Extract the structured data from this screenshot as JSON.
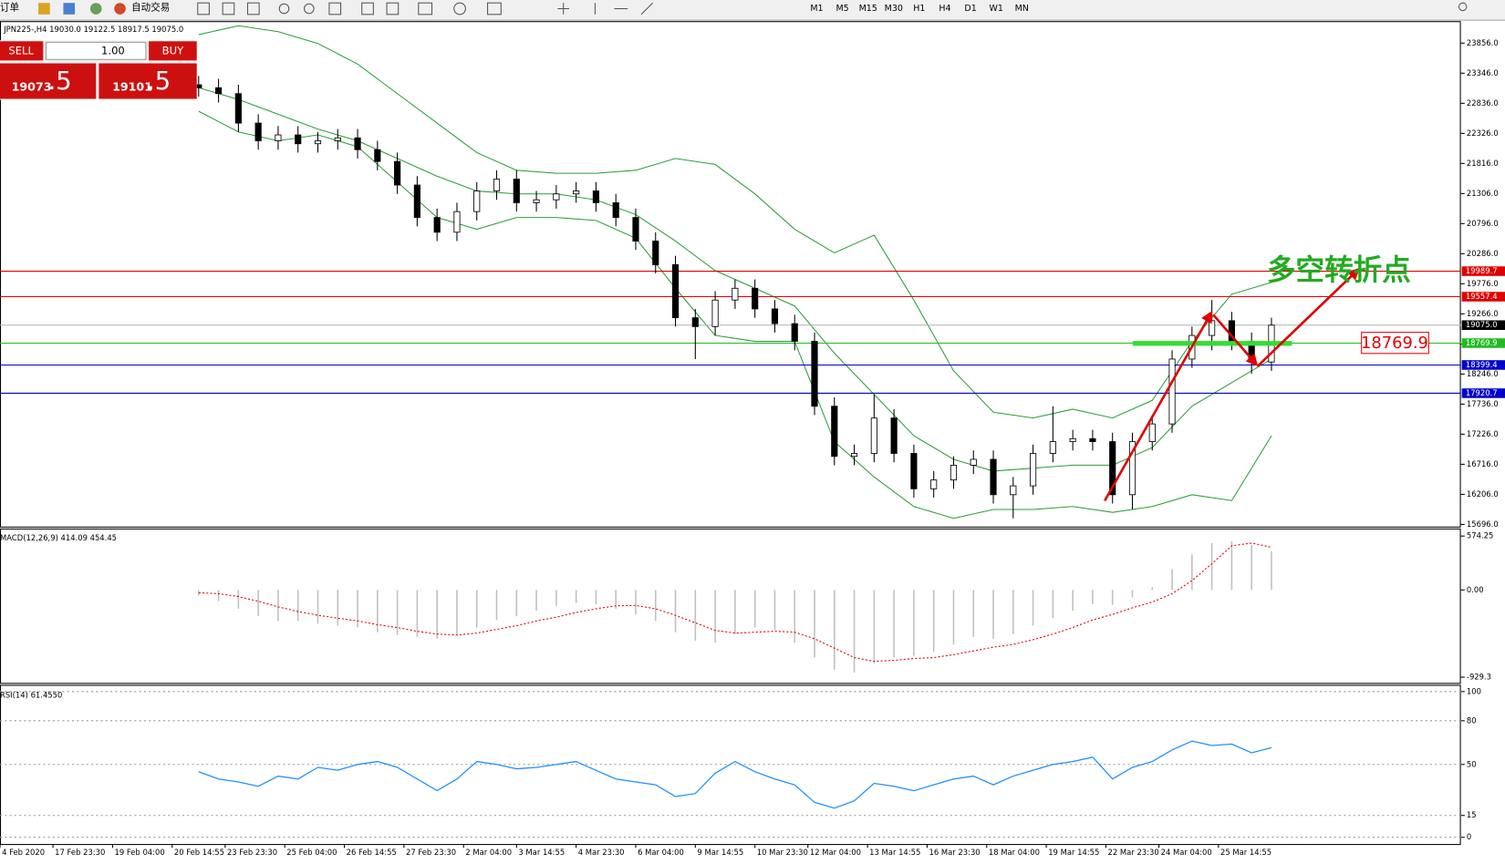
{
  "toolbar": {
    "order": "新订单",
    "auto_trade": "自动交易",
    "timeframes": [
      "M1",
      "M5",
      "M15",
      "M30",
      "H1",
      "H4",
      "D1",
      "W1",
      "MN"
    ]
  },
  "trade_panel": {
    "sell": "SELL",
    "buy": "BUY",
    "lots": "1.00",
    "sell_price": "19073",
    "sell_fraction": ".5",
    "buy_price": "19101",
    "buy_fraction": ".5"
  },
  "chart_data": [
    {
      "type": "candlestick",
      "title": "JPN225-,H4  19030.0 19122.5 18917.5 19075.0",
      "annotation": "多空转折点",
      "x": [
        30,
        33,
        36,
        39,
        42,
        45,
        48,
        51,
        54,
        57,
        60,
        63,
        66,
        69,
        72,
        75,
        78,
        81,
        84,
        87,
        90,
        93,
        96,
        99,
        102,
        105,
        108,
        111,
        114,
        117,
        120,
        123,
        126,
        129,
        132,
        135,
        138,
        141,
        144,
        147,
        150,
        153,
        156,
        159,
        162,
        165,
        168,
        171,
        174,
        177,
        180,
        183,
        186,
        189,
        192
      ],
      "open": [
        23150,
        23100,
        23000,
        22500,
        22200,
        22300,
        22150,
        22200,
        22250,
        22050,
        21850,
        21450,
        20900,
        20650,
        21000,
        21350,
        21550,
        21150,
        21200,
        21300,
        21350,
        21150,
        20900,
        20500,
        20100,
        19200,
        19050,
        19500,
        19700,
        19350,
        19100,
        18800,
        17700,
        16850,
        16900,
        17500,
        16900,
        16300,
        16450,
        16700,
        16800,
        16200,
        16350,
        16900,
        17100,
        17150,
        17100,
        16200,
        17100,
        17400,
        18500,
        18900,
        19150,
        18800,
        18450
      ],
      "high": [
        23300,
        23250,
        23150,
        22650,
        22450,
        22450,
        22350,
        22400,
        22400,
        22200,
        22000,
        21600,
        21050,
        21150,
        21500,
        21700,
        21700,
        21350,
        21450,
        21500,
        21500,
        21300,
        21050,
        20650,
        20250,
        19350,
        19650,
        19850,
        19850,
        19500,
        19250,
        18950,
        17850,
        17050,
        17900,
        17650,
        17050,
        16600,
        16850,
        16950,
        16950,
        16500,
        17050,
        17700,
        17300,
        17300,
        17250,
        17250,
        17550,
        18650,
        19050,
        19500,
        19300,
        18950,
        19200
      ],
      "low": [
        22950,
        22850,
        22350,
        22050,
        22050,
        22000,
        22000,
        22050,
        21900,
        21700,
        21300,
        20750,
        20500,
        20500,
        20850,
        21200,
        21000,
        21000,
        21050,
        21150,
        21000,
        20750,
        20350,
        19950,
        19050,
        18500,
        18900,
        19350,
        19200,
        18950,
        18650,
        17550,
        16700,
        16700,
        16750,
        16750,
        16150,
        16150,
        16300,
        16550,
        16050,
        15800,
        16200,
        16750,
        16950,
        16950,
        16050,
        15950,
        16950,
        17250,
        18350,
        18650,
        18650,
        18250,
        18300
      ],
      "close": [
        23100,
        23000,
        22500,
        22200,
        22300,
        22150,
        22200,
        22250,
        22050,
        21850,
        21450,
        20900,
        20650,
        21000,
        21350,
        21550,
        21150,
        21200,
        21300,
        21350,
        21150,
        20900,
        20500,
        20100,
        19200,
        19050,
        19500,
        19700,
        19350,
        19100,
        18800,
        17700,
        16850,
        16900,
        17500,
        16900,
        16300,
        16450,
        16700,
        16800,
        16200,
        16350,
        16900,
        17100,
        17150,
        17100,
        16200,
        17100,
        17400,
        18500,
        18900,
        19150,
        18800,
        18450,
        19075
      ],
      "band_x": [
        30,
        36,
        42,
        48,
        54,
        60,
        66,
        72,
        78,
        84,
        90,
        96,
        102,
        108,
        114,
        120,
        126,
        132,
        138,
        144,
        150,
        156,
        162,
        168,
        174,
        180,
        186,
        192
      ],
      "bands": {
        "color": "#2e9e3a",
        "upper": [
          24000,
          24150,
          24050,
          23850,
          23500,
          23000,
          22500,
          22000,
          21700,
          21650,
          21650,
          21700,
          21900,
          21800,
          21300,
          20700,
          20300,
          20600,
          19500,
          18300,
          17600,
          17500,
          17650,
          17500,
          17800,
          18800,
          19600,
          19800
        ],
        "middle": [
          23100,
          22900,
          22650,
          22400,
          22200,
          21900,
          21600,
          21350,
          21300,
          21300,
          21200,
          20950,
          20500,
          20000,
          19700,
          19400,
          18600,
          17900,
          17200,
          16800,
          16600,
          16650,
          16700,
          16700,
          17000,
          17700,
          18100,
          18500
        ],
        "lower": [
          22700,
          22350,
          22200,
          22300,
          22100,
          21500,
          20900,
          20700,
          20900,
          20900,
          20850,
          20550,
          19700,
          18900,
          18800,
          18800,
          17100,
          16500,
          16000,
          15800,
          15950,
          15950,
          16000,
          15900,
          16000,
          16200,
          16100,
          17200
        ]
      },
      "levels": [
        {
          "value": 19989.7,
          "label": "19989.7",
          "color": "#e00000",
          "line_color": "#e00000"
        },
        {
          "value": 19557.4,
          "label": "19557.4",
          "color": "#e00000",
          "line_color": "#e00000"
        },
        {
          "value": 19075.0,
          "label": "19075.0",
          "color": "#000000",
          "line_color": "#b0b0b0"
        },
        {
          "value": 18769.9,
          "label": "18769.9",
          "color": "#22bb22",
          "line_color": "#22bb22"
        },
        {
          "value": 18399.4,
          "label": "18399.4",
          "color": "#0000cc",
          "line_color": "#0000cc"
        },
        {
          "value": 17920.7,
          "label": "17920.7",
          "color": "#0000cc",
          "line_color": "#0000cc"
        }
      ],
      "xlim": [
        0,
        220.6
      ],
      "ylim": [
        15660,
        24180
      ],
      "grid": false,
      "yticks": [
        {
          "value": 15696,
          "label": "15696.0"
        },
        {
          "value": 16206,
          "label": "16206.0"
        },
        {
          "value": 16716,
          "label": "16716.0"
        },
        {
          "value": 17226,
          "label": "17226.0"
        },
        {
          "value": 17736,
          "label": "17736.0"
        },
        {
          "value": 18246,
          "label": "18246.0"
        },
        {
          "value": 18756,
          "label": "18756.0"
        },
        {
          "value": 19266,
          "label": "19266.0"
        },
        {
          "value": 19776,
          "label": "19776.0"
        },
        {
          "value": 20286,
          "label": "20286.0"
        },
        {
          "value": 20796,
          "label": "20796.0"
        },
        {
          "value": 21306,
          "label": "21306.0"
        },
        {
          "value": 21816,
          "label": "21816.0"
        },
        {
          "value": 22326,
          "label": "22326.0"
        },
        {
          "value": 22836,
          "label": "22836.0"
        },
        {
          "value": 23346,
          "label": "23346.0"
        },
        {
          "value": 23856,
          "label": "23856.0"
        }
      ],
      "xticks": [
        {
          "value": 0,
          "label": "4 Feb 2020"
        },
        {
          "value": 8,
          "label": "17 Feb 23:30"
        },
        {
          "value": 17,
          "label": "19 Feb 04:00"
        },
        {
          "value": 26,
          "label": "20 Feb 14:55"
        },
        {
          "value": 34,
          "label": "23 Feb 23:30"
        },
        {
          "value": 43,
          "label": "25 Feb 04:00"
        },
        {
          "value": 52,
          "label": "26 Feb 14:55"
        },
        {
          "value": 61,
          "label": "27 Feb 23:30"
        },
        {
          "value": 70,
          "label": "2 Mar 04:00"
        },
        {
          "value": 78,
          "label": "3 Mar 14:55"
        },
        {
          "value": 87,
          "label": "4 Mar 23:30"
        },
        {
          "value": 96,
          "label": "6 Mar 04:00"
        },
        {
          "value": 105,
          "label": "9 Mar 14:55"
        },
        {
          "value": 114,
          "label": "10 Mar 23:30"
        },
        {
          "value": 122,
          "label": "12 Mar 04:00"
        },
        {
          "value": 131,
          "label": "13 Mar 14:55"
        },
        {
          "value": 140,
          "label": "16 Mar 23:30"
        },
        {
          "value": 149,
          "label": "18 Mar 04:00"
        },
        {
          "value": 158,
          "label": "19 Mar 14:55"
        },
        {
          "value": 167,
          "label": "22 Mar 23:30"
        },
        {
          "value": 175,
          "label": "24 Mar 04:00"
        },
        {
          "value": 184,
          "label": "25 Mar 14:55"
        }
      ]
    },
    {
      "type": "macd",
      "title": "MACD(12,26,9) 414.09 454.45",
      "histogram": [
        -60,
        -120,
        -200,
        -280,
        -330,
        -330,
        -360,
        -380,
        -400,
        -450,
        -480,
        -500,
        -520,
        -480,
        -400,
        -320,
        -280,
        -220,
        -170,
        -140,
        -150,
        -200,
        -260,
        -330,
        -450,
        -540,
        -560,
        -470,
        -400,
        -430,
        -560,
        -720,
        -850,
        -880,
        -780,
        -720,
        -700,
        -660,
        -580,
        -500,
        -520,
        -470,
        -380,
        -300,
        -220,
        -150,
        -160,
        -80,
        30,
        220,
        380,
        500,
        520,
        480,
        414.09
      ],
      "signal": [
        -30,
        -40,
        -70,
        -120,
        -180,
        -230,
        -270,
        -300,
        -330,
        -370,
        -400,
        -440,
        -470,
        -480,
        -460,
        -420,
        -380,
        -330,
        -290,
        -240,
        -200,
        -170,
        -165,
        -200,
        -270,
        -350,
        -430,
        -460,
        -450,
        -440,
        -450,
        -520,
        -620,
        -720,
        -760,
        -750,
        -730,
        -720,
        -690,
        -650,
        -610,
        -580,
        -530,
        -470,
        -400,
        -320,
        -260,
        -190,
        -130,
        -40,
        100,
        280,
        470,
        500,
        454.45
      ],
      "histogram_color": "#c0c0c0",
      "signal_color": "#e00000",
      "ylim": [
        -990,
        655
      ],
      "grid": false,
      "yticks": [
        {
          "value": -929.3,
          "label": "-929.3"
        },
        {
          "value": 0,
          "label": "0.00"
        },
        {
          "value": 574.25,
          "label": "574.25"
        }
      ]
    },
    {
      "type": "rsi",
      "title": "RSI(14) 61.4550",
      "color": "#1e90ff",
      "values": [
        45,
        40,
        38,
        35,
        42,
        40,
        48,
        46,
        50,
        52,
        48,
        40,
        32,
        40,
        52,
        50,
        47,
        48,
        50,
        52,
        46,
        40,
        38,
        36,
        28,
        30,
        44,
        52,
        45,
        40,
        36,
        24,
        20,
        25,
        37,
        35,
        32,
        36,
        40,
        42,
        36,
        42,
        46,
        50,
        52,
        55,
        40,
        48,
        52,
        60,
        66,
        63,
        64,
        58,
        61.455
      ],
      "ylim": [
        -4.6,
        104
      ],
      "grid": true,
      "yticks": [
        0,
        15,
        50,
        80,
        100
      ]
    }
  ]
}
